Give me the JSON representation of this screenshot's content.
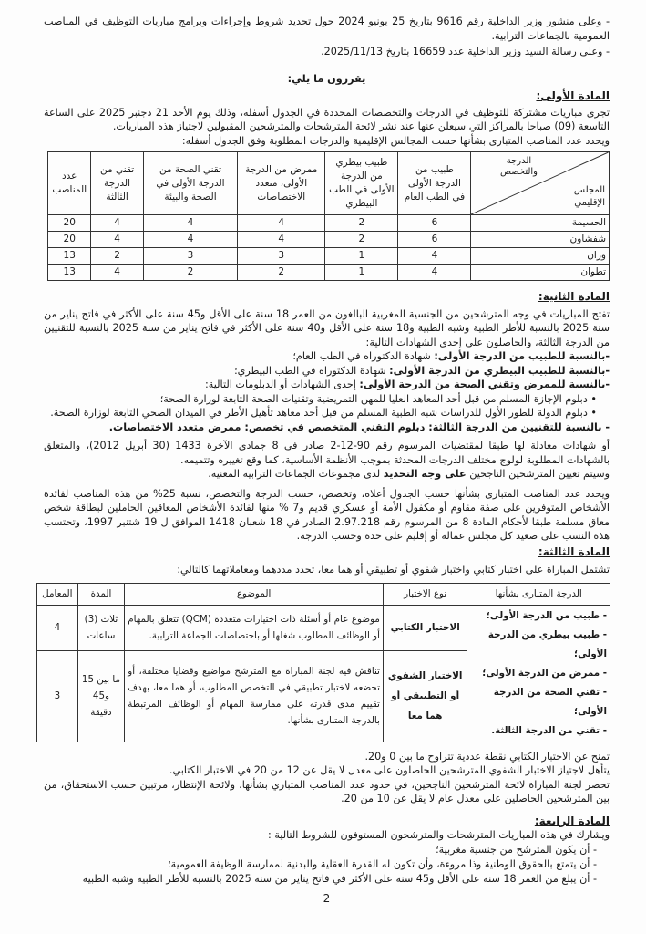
{
  "intro": [
    "- وعلى منشور وزير الداخلية رقم 9616 بتاريخ 25 يونيو 2024 حول تحديد شروط وإجراءات وبرامج مباريات التوظيف في المناصب العمومية بالجماعات الترابية.",
    "- وعلى رسالة السيد وزير الداخلية عدد 16659 بتاريخ 2025/11/13."
  ],
  "decide_heading": "يقررون ما يلي:",
  "article1": {
    "title": "المادة الأولى:",
    "para": "تجرى مباريات مشتركة للتوظيف في الدرجات والتخصصات المحددة في الجدول أسفله، وذلك يوم الأحد 21 دجنبر 2025 على الساعة التاسعة (09) صباحا بالمراكز التي سيعلن عنها عند نشر لائحة المترشحات والمترشحين المقبولين لاجتياز هذه المباريات.",
    "para2": "ويحدد عدد المناصب المتبارى بشأنها حسب المجالس الإقليمية والدرجات المطلوبة وفق الجدول أسفله:",
    "table": {
      "corner_top": "الدرجة والتخصص",
      "corner_bottom": "المجلس الإقليمي",
      "headers": [
        "طبيب من الدرجة الأولى في الطب العام",
        "طبيب بيطري من الدرجة الأولى في الطب البيطري",
        "ممرض من الدرجة الأولى، متعدد الاختصاصات",
        "تقني الصحة من الدرجة الأولى في الصحة والبيئة",
        "تقني من الدرجة الثالثة",
        "عدد المناصب"
      ],
      "rows": [
        {
          "name": "الحسيمة",
          "values": [
            "6",
            "2",
            "4",
            "4",
            "4",
            "20"
          ]
        },
        {
          "name": "شفشاون",
          "values": [
            "6",
            "2",
            "4",
            "4",
            "4",
            "20"
          ]
        },
        {
          "name": "وزان",
          "values": [
            "4",
            "1",
            "3",
            "3",
            "2",
            "13"
          ]
        },
        {
          "name": "تطوان",
          "values": [
            "4",
            "1",
            "2",
            "2",
            "4",
            "13"
          ]
        }
      ]
    }
  },
  "article2": {
    "title": "المادة الثانية:",
    "para": "تفتح المباريات في وجه المترشحين من الجنسية المغربية البالغون من العمر 18 سنة على الأقل و45 سنة على الأكثر في فاتح يناير من سنة 2025 بالنسبة للأطر الطبية وشبه الطبية و18 سنة على الأقل و40 سنة على الأكثر في فاتح يناير من سنة 2025 بالنسبة للتقنيين من الدرجة الثالثة، والحاصلون على إحدى الشهادات التالية:",
    "items": [
      {
        "label": "-بالنسبة للطبيب من الدرجة الأولى:",
        "text": " شهادة الدكتوراه في الطب العام؛"
      },
      {
        "label": "-بالنسبة للطبيب البيطري من الدرجة الأولى:",
        "text": " شهادة الدكتوراه في الطب البيطري؛"
      },
      {
        "label": "-بالنسبة للممرض وتقني الصحة من الدرجة الأولى:",
        "text": " إحدى الشهادات أو الدبلومات التالية:"
      }
    ],
    "bullets": [
      "• دبلوم الإجازة المسلم من قبل أحد المعاهد العليا للمهن التمريضية وتقنيات الصحة التابعة لوزارة الصحة؛",
      "• دبلوم الدولة للطور الأول للدراسات شبه الطبية المسلم من قبل أحد معاهد تأهيل الأطر في الميدان الصحي التابعة لوزارة الصحة."
    ],
    "tech": "- بالنسبة للتقنيين من الدرجة الثالثة: دبلوم التقني المتخصص في تخصص: ممرض متعدد الاختصاصات.",
    "equiv": "أو شهادات معادلة لها طبقا لمقتضيات المرسوم رقم 90-12-2 صادر في 8 جمادى الآخرة 1433 (30 أبريل 2012)، والمتعلق بالشهادات المطلوبة لولوج مختلف الدرجات المحدثة بموجب الأنظمة الأساسية، كما وقع تغييره وتتميمه.",
    "assign_pre": "وسيتم تعيين المترشحين الناجحين ",
    "assign_bold": "على وجه التحديد",
    "assign_post": " لدى مجموعات الجماعات الترابية المعنية.",
    "quota": "ويحدد عدد المناصب المتبارى بشأنها حسب الجدول أعلاه، وتخصص، حسب الدرجة والتخصص، نسبة 25% من هذه المناصب لفائدة الأشخاص المتوفرين على صفة مقاوم أو مكفول الأمة أو عسكري قديم و7 % منها لفائدة الأشخاص المعاقين الحاملين لبطاقة شخص معاق مسلمة طبقا لأحكام المادة 8 من المرسوم رقم 2.97.218 الصادر في 18 شعبان 1418 الموافق ل 19 شتنبر 1997، وتحتسب هذه النسب على صعيد كل مجلس عمالة أو إقليم على حدة وحسب الدرجة."
  },
  "article3": {
    "title": "المادة الثالثة:",
    "para": "تشتمل المباراة على اختبار كتابي واختبار شفوي أو تطبيقي أو هما معا، تحدد مددهما ومعاملاتهما كالتالي:",
    "table": {
      "headers": [
        "الدرجة المتبارى بشأنها",
        "نوع الاختبار",
        "الموضوع",
        "المدة",
        "المعامل"
      ],
      "grades": [
        "- طبيب من الدرجة الأولى؛",
        "- طبيب بيطري من الدرجة الأولى؛",
        "- ممرض من الدرجة الأولى؛",
        "- تقني الصحة من الدرجة الأولى؛",
        "- تقني من الدرجة الثالثة."
      ],
      "rows": [
        {
          "type": "الاختبار الكتابي",
          "subject": "موضوع عام أو أسئلة ذات اختيارات متعددة (QCM) تتعلق بالمهام أو الوظائف المطلوب شغلها أو باختصاصات الجماعة الترابية.",
          "duration": "ثلاث (3) ساعات",
          "coef": "4"
        },
        {
          "type": "الاختبار الشفوي أو التطبيقي أو هما معا",
          "subject": "تناقش فيه لجنة المباراة مع المترشح مواضيع وقضايا مختلفة، أو تخضعه لاختبار تطبيقي في التخصص المطلوب، أو هما معا، بهدف تقييم مدى قدرته على ممارسة المهام أو الوظائف المرتبطة بالدرجة المتبارى بشأنها.",
          "duration": "ما بين 15 و45 دقيقة",
          "coef": "3"
        }
      ]
    },
    "notes": [
      "تمنح عن الاختبار الكتابي نقطة عددية تتراوح ما بين 0 و20.",
      "يتأهل لاجتياز الاختبار الشفوي المترشحين الحاصلون على معدل لا يقل عن 12 من 20 في الاختبار الكتابي.",
      "تحصر لجنة المباراة لائحة المترشحين الناجحين، في حدود عدد المناصب المتباري بشأنها، ولائحة الإنتظار، مرتبين حسب الاستحقاق، من بين المترشحين الحاصلين على معدل عام لا يقل عن 10 من 20."
    ]
  },
  "article4": {
    "title": "المادة الرابعة:",
    "para": "ويشارك في هذه المباريات المترشحات والمترشحون المستوفون للشروط التالية :",
    "items": [
      "- أن يكون المترشح من جنسية مغربية؛",
      "- أن يتمتع بالحقوق الوطنية وذا مروءة، وأن تكون له القدرة العقلية والبدنية لممارسة الوظيفة العمومية؛",
      "- أن يبلغ من العمر 18 سنة على الأقل و45 سنة على الأكثر في فاتح يناير من سنة 2025 بالنسبة للأطر الطبية وشبه الطبية"
    ]
  },
  "page_number": "2"
}
